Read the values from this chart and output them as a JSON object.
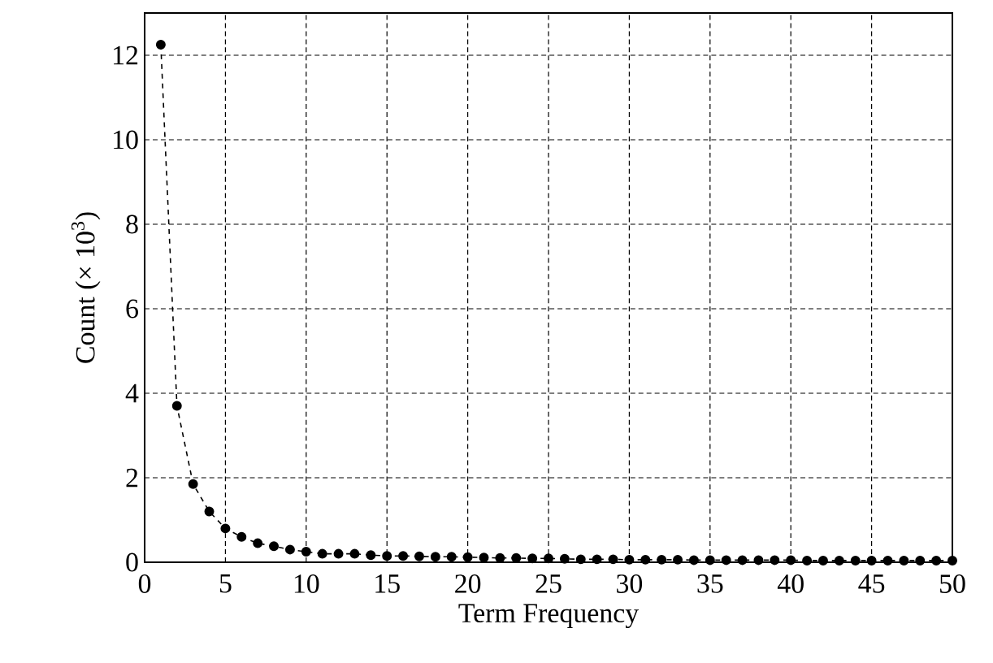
{
  "chart_data": {
    "type": "line",
    "xlabel": "Term Frequency",
    "ylabel": "Count  (× 10$^{3}$)",
    "x": [
      1,
      2,
      3,
      4,
      5,
      6,
      7,
      8,
      9,
      10,
      11,
      12,
      13,
      14,
      15,
      16,
      17,
      18,
      19,
      20,
      21,
      22,
      23,
      24,
      25,
      26,
      27,
      28,
      29,
      30,
      31,
      32,
      33,
      34,
      35,
      36,
      37,
      38,
      39,
      40,
      41,
      42,
      43,
      44,
      45,
      46,
      47,
      48,
      49,
      50
    ],
    "series": [
      {
        "color": "#000000",
        "values": [
          12.25,
          3.7,
          1.85,
          1.2,
          0.8,
          0.6,
          0.45,
          0.38,
          0.3,
          0.25,
          0.2,
          0.2,
          0.2,
          0.17,
          0.15,
          0.15,
          0.14,
          0.13,
          0.13,
          0.12,
          0.11,
          0.1,
          0.1,
          0.09,
          0.09,
          0.08,
          0.07,
          0.07,
          0.07,
          0.06,
          0.06,
          0.06,
          0.06,
          0.05,
          0.05,
          0.05,
          0.05,
          0.05,
          0.05,
          0.05,
          0.04,
          0.04,
          0.04,
          0.04,
          0.04,
          0.04,
          0.04,
          0.04,
          0.04,
          0.04
        ]
      }
    ],
    "xlim": [
      0,
      50
    ],
    "ylim": [
      0,
      13
    ],
    "xticks": [
      0,
      5,
      10,
      15,
      20,
      25,
      30,
      35,
      40,
      45,
      50
    ],
    "yticks": [
      0,
      2,
      4,
      6,
      8,
      10,
      12
    ],
    "grid": true,
    "marker": "circle",
    "line_style": "dashed"
  }
}
